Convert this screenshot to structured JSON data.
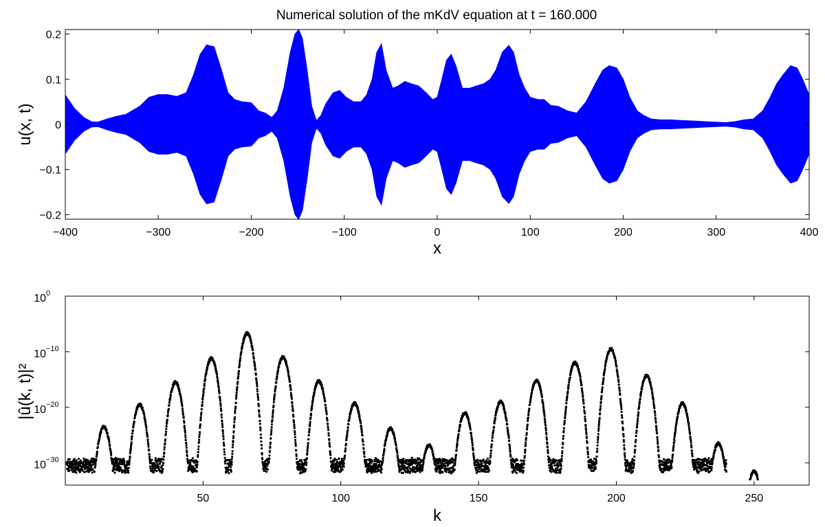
{
  "title": "Numerical solution of the mKdV equation at t = 160.000",
  "chart_data": [
    {
      "type": "area",
      "xlabel": "x",
      "ylabel": "u(x, t)",
      "xlim": [
        -400,
        400
      ],
      "ylim": [
        -0.21,
        0.21
      ],
      "xticks": [
        -400,
        -300,
        -200,
        -100,
        0,
        100,
        200,
        300,
        400
      ],
      "xtick_labels": [
        "−400",
        "−300",
        "−200",
        "−100",
        "0",
        "100",
        "200",
        "300",
        "400"
      ],
      "yticks": [
        0.2,
        0.1,
        0,
        -0.1,
        -0.2
      ],
      "ytick_labels": [
        "0.2",
        "0.1",
        "0",
        "−0.1",
        "−0.2"
      ],
      "grid": false,
      "fill_color": "#0000ff",
      "series": [
        {
          "description_values": "envelope amplitude |u| (symmetric about 0)",
          "x": [
            -400,
            -390,
            -380,
            -372,
            -365,
            -355,
            -345,
            -335,
            -320,
            -310,
            -300,
            -290,
            -280,
            -270,
            -262,
            -255,
            -248,
            -240,
            -232,
            -225,
            -218,
            -210,
            -200,
            -192,
            -185,
            -178,
            -172,
            -165,
            -158,
            -153,
            -149,
            -145,
            -140,
            -135,
            -130,
            -125,
            -120,
            -112,
            -105,
            -98,
            -90,
            -82,
            -76,
            -70,
            -65,
            -60,
            -55,
            -48,
            -42,
            -35,
            -28,
            -20,
            -12,
            -5,
            0,
            5,
            10,
            15,
            20,
            27,
            35,
            42,
            50,
            57,
            63,
            70,
            77,
            82,
            88,
            94,
            100,
            108,
            115,
            122,
            130,
            140,
            150,
            160,
            170,
            178,
            185,
            193,
            200,
            207,
            215,
            222,
            230,
            240,
            250,
            260,
            270,
            280,
            290,
            300,
            310,
            320,
            330,
            340,
            350,
            358,
            365,
            372,
            380,
            387,
            393,
            400
          ],
          "values": [
            0.065,
            0.035,
            0.015,
            0.006,
            0.005,
            0.012,
            0.018,
            0.022,
            0.04,
            0.06,
            0.066,
            0.066,
            0.062,
            0.07,
            0.11,
            0.155,
            0.176,
            0.172,
            0.12,
            0.07,
            0.055,
            0.05,
            0.048,
            0.03,
            0.025,
            0.015,
            0.03,
            0.08,
            0.16,
            0.2,
            0.21,
            0.19,
            0.12,
            0.04,
            0.008,
            0.02,
            0.045,
            0.07,
            0.075,
            0.06,
            0.05,
            0.05,
            0.065,
            0.1,
            0.16,
            0.178,
            0.12,
            0.08,
            0.085,
            0.095,
            0.09,
            0.085,
            0.07,
            0.055,
            0.06,
            0.1,
            0.142,
            0.155,
            0.13,
            0.08,
            0.08,
            0.085,
            0.09,
            0.1,
            0.12,
            0.16,
            0.175,
            0.16,
            0.11,
            0.08,
            0.06,
            0.055,
            0.055,
            0.042,
            0.04,
            0.03,
            0.025,
            0.05,
            0.09,
            0.12,
            0.13,
            0.125,
            0.1,
            0.06,
            0.03,
            0.02,
            0.012,
            0.01,
            0.01,
            0.009,
            0.008,
            0.007,
            0.006,
            0.005,
            0.004,
            0.006,
            0.01,
            0.012,
            0.03,
            0.06,
            0.09,
            0.11,
            0.13,
            0.125,
            0.1,
            0.065
          ]
        }
      ]
    },
    {
      "type": "scatter",
      "xlabel": "k",
      "ylabel": "|û(k, t)|²",
      "xlim": [
        0,
        270
      ],
      "ylim_log10": [
        -34,
        0
      ],
      "log_scale_y": true,
      "xticks": [
        50,
        100,
        150,
        200,
        250
      ],
      "xtick_labels": [
        "50",
        "100",
        "150",
        "200",
        "250"
      ],
      "yticks_exponent": [
        0,
        -10,
        -20,
        -30
      ],
      "ytick_base": "10",
      "ytick_exponent_labels": [
        "0",
        "−10",
        "−20",
        "−30"
      ],
      "grid": false,
      "marker_color": "#000000",
      "noise_floor_log10": -30.5,
      "noise_floor_k_range": [
        0,
        240
      ],
      "peaks": [
        {
          "k": 14,
          "log10": -23.5
        },
        {
          "k": 27,
          "log10": -19.5
        },
        {
          "k": 40,
          "log10": -15.5
        },
        {
          "k": 53,
          "log10": -11.2
        },
        {
          "k": 66,
          "log10": -6.7
        },
        {
          "k": 79,
          "log10": -11
        },
        {
          "k": 92,
          "log10": -15.3
        },
        {
          "k": 105,
          "log10": -19.3
        },
        {
          "k": 118,
          "log10": -23.8
        },
        {
          "k": 132,
          "log10": -26.8
        },
        {
          "k": 145,
          "log10": -21
        },
        {
          "k": 158,
          "log10": -19
        },
        {
          "k": 171,
          "log10": -15.2
        },
        {
          "k": 185,
          "log10": -12
        },
        {
          "k": 198,
          "log10": -9.5
        },
        {
          "k": 211,
          "log10": -14.3
        },
        {
          "k": 224,
          "log10": -19.3
        },
        {
          "k": 237,
          "log10": -26.5
        },
        {
          "k": 250,
          "log10": -31.5
        }
      ]
    }
  ]
}
